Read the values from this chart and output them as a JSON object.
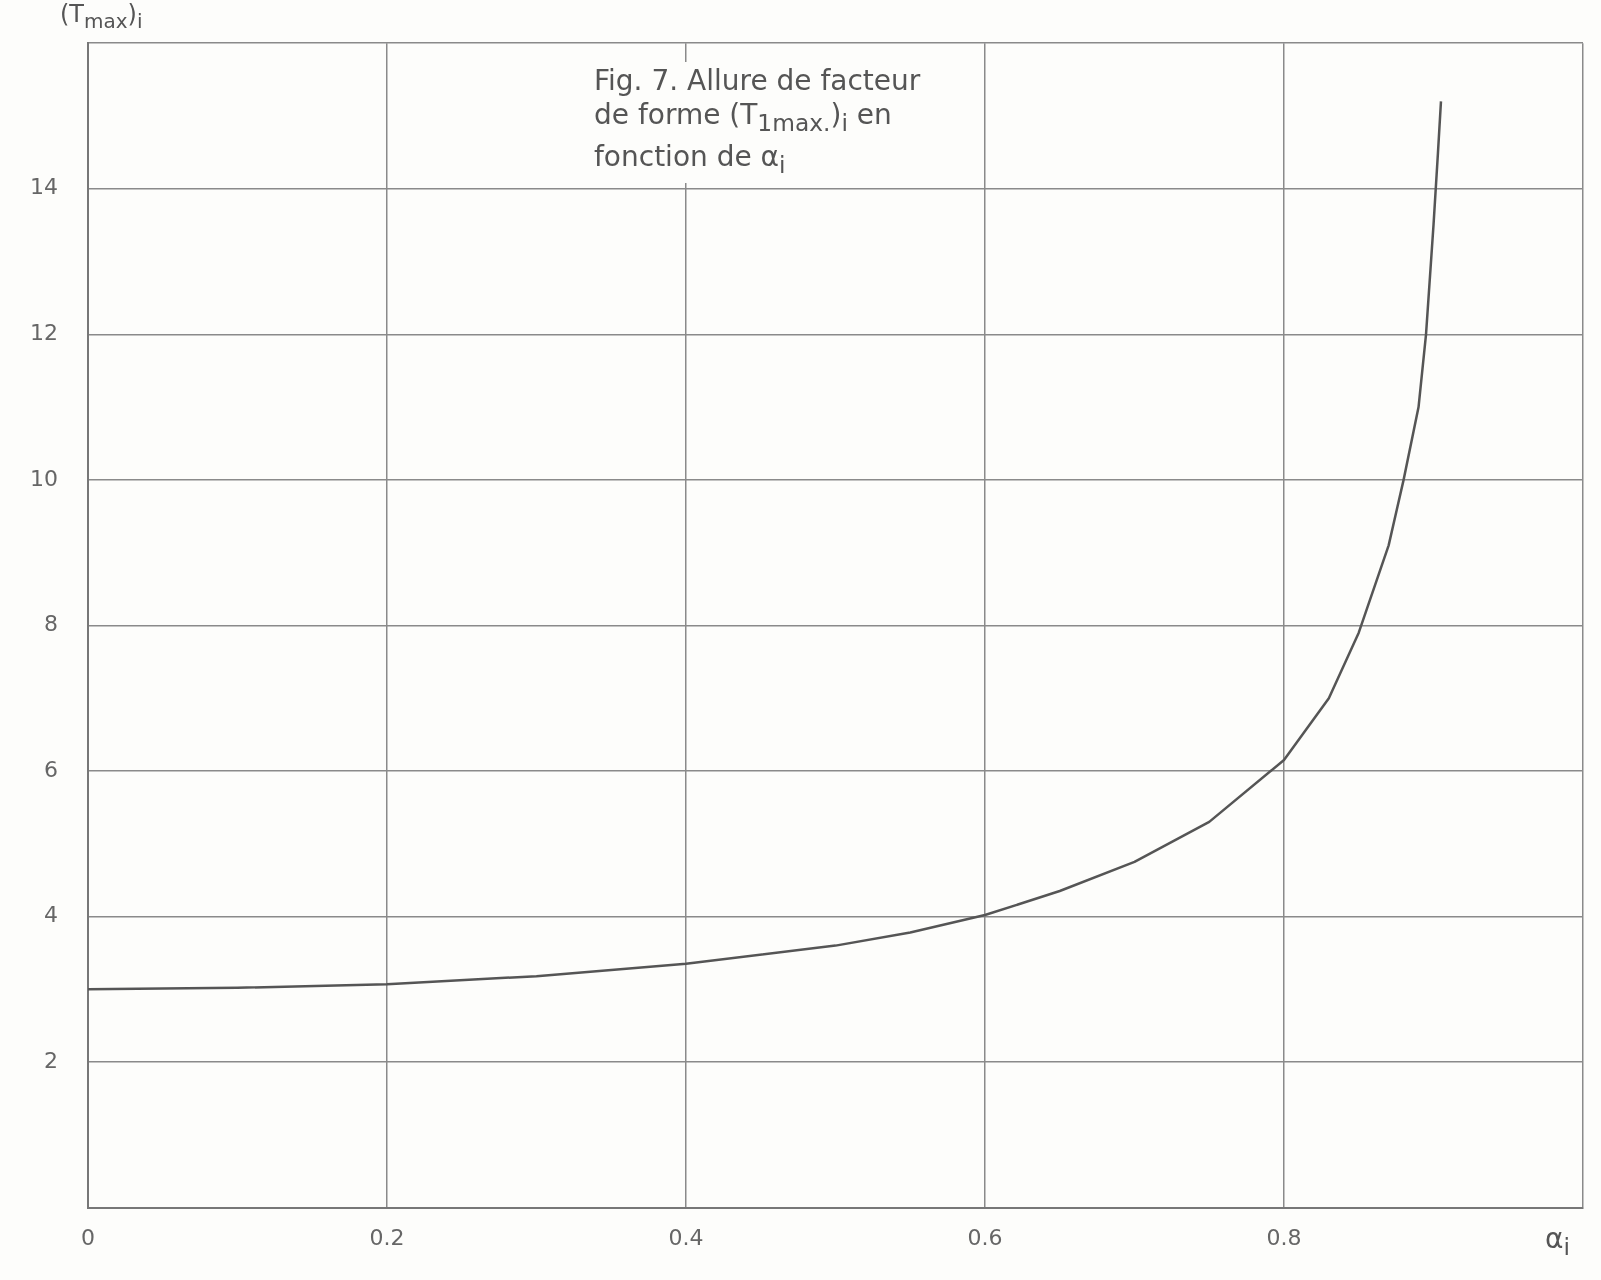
{
  "chart_data": {
    "type": "line",
    "annotations": [
      "Fig. 7. Allure de facteur de forme (T$_{1max.}$)$_{i}$ en fonction de α$_{i}$"
    ],
    "xlabel": "α$_{i}$",
    "ylabel": "(T$_{max}$)$_{i}$",
    "x": [
      0,
      0.1,
      0.2,
      0.3,
      0.4,
      0.5,
      0.55,
      0.6,
      0.65,
      0.7,
      0.75,
      0.8,
      0.83,
      0.85,
      0.87,
      0.88,
      0.89,
      0.895,
      0.9,
      0.903,
      0.905
    ],
    "series": [
      {
        "color": "#555555",
        "values": [
          3.0,
          3.02,
          3.07,
          3.18,
          3.35,
          3.6,
          3.78,
          4.02,
          4.35,
          4.75,
          5.3,
          6.15,
          7.0,
          7.9,
          9.1,
          10.0,
          11.0,
          12.0,
          13.5,
          14.5,
          15.2
        ]
      }
    ],
    "xlim": [
      0,
      1
    ],
    "xticks": [
      0,
      0.2,
      0.4,
      0.6,
      0.8,
      {
        "value": 1,
        "label": null
      }
    ],
    "ylim": [
      0,
      16
    ],
    "yticks": [
      {
        "value": 0,
        "label": null
      },
      2,
      4,
      6,
      8,
      10,
      12,
      14,
      {
        "value": 16,
        "label": null
      }
    ],
    "grid": true,
    "marker": "none",
    "line_style": "solid"
  }
}
